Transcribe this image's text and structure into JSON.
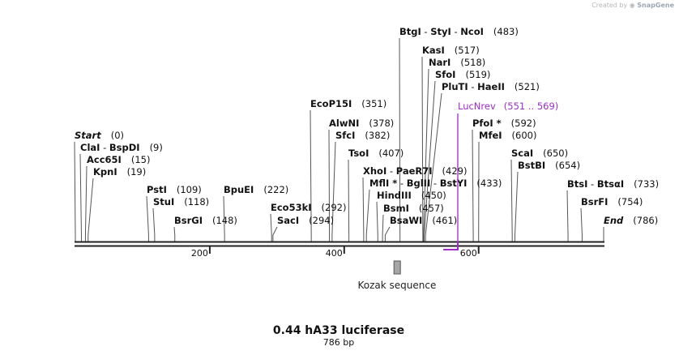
{
  "credit": {
    "prefix": "Created by",
    "brand": "SnapGene"
  },
  "map": {
    "title": "0.44 hA33 luciferase",
    "length_label": "786 bp",
    "length_bp": 786
  },
  "ticks": [
    {
      "bp": 200,
      "label": "200"
    },
    {
      "bp": 400,
      "label": "400"
    },
    {
      "bp": 600,
      "label": "600"
    }
  ],
  "sites": [
    {
      "id": "start",
      "names": [
        "Start"
      ],
      "pos": "(0)",
      "bp": 0,
      "italic": true
    },
    {
      "id": "clai",
      "names": [
        "ClaI",
        "BspDI"
      ],
      "pos": "(9)",
      "bp": 9
    },
    {
      "id": "acc65i",
      "names": [
        "Acc65I"
      ],
      "pos": "(15)",
      "bp": 15
    },
    {
      "id": "kpni",
      "names": [
        "KpnI"
      ],
      "pos": "(19)",
      "bp": 19
    },
    {
      "id": "psti",
      "names": [
        "PstI"
      ],
      "pos": "(109)",
      "bp": 109
    },
    {
      "id": "stui",
      "names": [
        "StuI"
      ],
      "pos": "(118)",
      "bp": 118
    },
    {
      "id": "bsrgi",
      "names": [
        "BsrGI"
      ],
      "pos": "(148)",
      "bp": 148
    },
    {
      "id": "bpuei",
      "names": [
        "BpuEI"
      ],
      "pos": "(222)",
      "bp": 222
    },
    {
      "id": "eco53ki",
      "names": [
        "Eco53kI"
      ],
      "pos": "(292)",
      "bp": 292
    },
    {
      "id": "saci",
      "names": [
        "SacI"
      ],
      "pos": "(294)",
      "bp": 294
    },
    {
      "id": "ecop15i",
      "names": [
        "EcoP15I"
      ],
      "pos": "(351)",
      "bp": 351
    },
    {
      "id": "alwni",
      "names": [
        "AlwNI"
      ],
      "pos": "(378)",
      "bp": 378
    },
    {
      "id": "sfci",
      "names": [
        "SfcI"
      ],
      "pos": "(382)",
      "bp": 382
    },
    {
      "id": "tsoi",
      "names": [
        "TsoI"
      ],
      "pos": "(407)",
      "bp": 407
    },
    {
      "id": "xhoi",
      "names": [
        "XhoI",
        "PaeR7I"
      ],
      "pos": "(429)",
      "bp": 429
    },
    {
      "id": "mfli",
      "names": [
        "MflI *",
        "BglII",
        "BstYI"
      ],
      "pos": "(433)",
      "bp": 433
    },
    {
      "id": "hindiii",
      "names": [
        "HindIII"
      ],
      "pos": "(450)",
      "bp": 450
    },
    {
      "id": "bsmi",
      "names": [
        "BsmI"
      ],
      "pos": "(457)",
      "bp": 457
    },
    {
      "id": "bsawi",
      "names": [
        "BsaWI"
      ],
      "pos": "(461)",
      "bp": 461
    },
    {
      "id": "btgi",
      "names": [
        "BtgI",
        "StyI",
        "NcoI"
      ],
      "pos": "(483)",
      "bp": 483
    },
    {
      "id": "kasi",
      "names": [
        "KasI"
      ],
      "pos": "(517)",
      "bp": 517
    },
    {
      "id": "nari",
      "names": [
        "NarI"
      ],
      "pos": "(518)",
      "bp": 518
    },
    {
      "id": "sfoi",
      "names": [
        "SfoI"
      ],
      "pos": "(519)",
      "bp": 519
    },
    {
      "id": "pluti",
      "names": [
        "PluTI",
        "HaeII"
      ],
      "pos": "(521)",
      "bp": 521
    },
    {
      "id": "pfoi",
      "names": [
        "PfoI *"
      ],
      "pos": "(592)",
      "bp": 592
    },
    {
      "id": "mfei",
      "names": [
        "MfeI"
      ],
      "pos": "(600)",
      "bp": 600
    },
    {
      "id": "scai",
      "names": [
        "ScaI"
      ],
      "pos": "(650)",
      "bp": 650
    },
    {
      "id": "bstbi",
      "names": [
        "BstBI"
      ],
      "pos": "(654)",
      "bp": 654
    },
    {
      "id": "btsi",
      "names": [
        "BtsI",
        "BtsαI"
      ],
      "pos": "(733)",
      "bp": 733
    },
    {
      "id": "bsrfi",
      "names": [
        "BsrFI"
      ],
      "pos": "(754)",
      "bp": 754
    },
    {
      "id": "end",
      "names": [
        "End"
      ],
      "pos": "(786)",
      "bp": 786,
      "italic": true
    }
  ],
  "primer": {
    "name": "LucNrev",
    "range": "(551 .. 569)",
    "start_bp": 551,
    "end_bp": 569,
    "color": "#9b2dc9"
  },
  "feature": {
    "name": "Kozak sequence",
    "start_bp": 474,
    "end_bp": 483,
    "color": "#a6a6a6"
  }
}
